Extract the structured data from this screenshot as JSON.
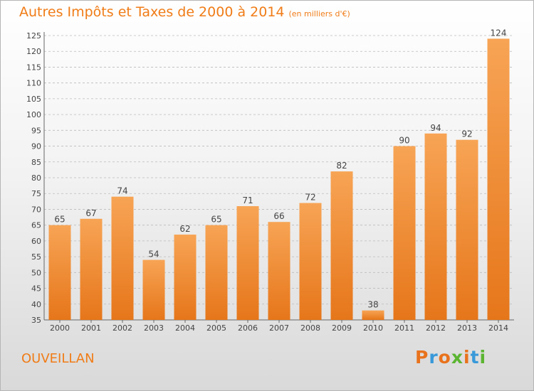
{
  "header": {
    "title": "Autres Impôts et Taxes de 2000 à 2014",
    "unit": "(en milliers d'€)"
  },
  "footer": {
    "city": "OUVEILLAN",
    "logo": {
      "text": "Proxiti",
      "letter_colors": [
        "#e8731c",
        "#3a9ad9",
        "#e8731c",
        "#5bb531",
        "#e8731c",
        "#3a9ad9",
        "#5bb531"
      ]
    }
  },
  "colors": {
    "title": "#f07c17",
    "bar_light": "#f7a455",
    "bar_dark": "#e6761a",
    "grid": "#bbbbbb"
  },
  "chart_data": {
    "type": "bar",
    "categories": [
      "2000",
      "2001",
      "2002",
      "2003",
      "2004",
      "2005",
      "2006",
      "2007",
      "2008",
      "2009",
      "2010",
      "2011",
      "2012",
      "2013",
      "2014"
    ],
    "values": [
      65,
      67,
      74,
      54,
      62,
      65,
      71,
      66,
      72,
      82,
      38,
      90,
      94,
      92,
      124
    ],
    "title": "Autres Impôts et Taxes de 2000 à 2014",
    "subtitle": "(en milliers d'€)",
    "xlabel": "",
    "ylabel": "",
    "ylim": [
      35,
      125
    ],
    "ytick_step": 5,
    "grid": true,
    "data_labels": true
  }
}
